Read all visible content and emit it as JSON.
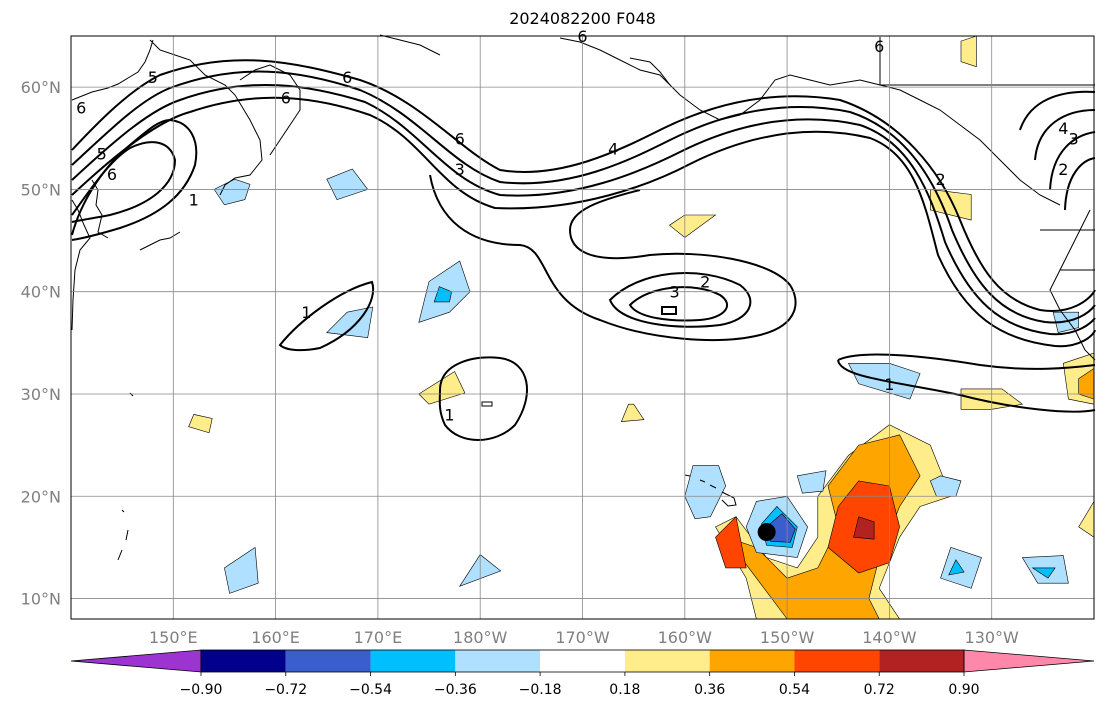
{
  "title": "2024082200 F048",
  "colors": {
    "land_outline": "#000000",
    "grid": "#888888",
    "contour": "#000000"
  },
  "chart_data": {
    "type": "map",
    "lon_range": [
      140,
      240
    ],
    "lat_range": [
      8,
      65
    ],
    "lat_ticks": [
      {
        "value": 10,
        "label": "10°N"
      },
      {
        "value": 20,
        "label": "20°N"
      },
      {
        "value": 30,
        "label": "30°N"
      },
      {
        "value": 40,
        "label": "40°N"
      },
      {
        "value": 50,
        "label": "50°N"
      },
      {
        "value": 60,
        "label": "60°N"
      }
    ],
    "lon_ticks": [
      {
        "value": 150,
        "label": "150°E"
      },
      {
        "value": 160,
        "label": "160°E"
      },
      {
        "value": 170,
        "label": "170°E"
      },
      {
        "value": 180,
        "label": "180°W"
      },
      {
        "value": 190,
        "label": "170°W"
      },
      {
        "value": 200,
        "label": "160°W"
      },
      {
        "value": 210,
        "label": "150°W"
      },
      {
        "value": 220,
        "label": "140°W"
      },
      {
        "value": 230,
        "label": "130°W"
      }
    ],
    "colorbar": {
      "levels": [
        -0.9,
        -0.72,
        -0.54,
        -0.36,
        -0.18,
        0.18,
        0.36,
        0.54,
        0.72,
        0.9
      ],
      "labels": [
        "−0.90",
        "−0.72",
        "−0.54",
        "−0.36",
        "−0.18",
        "0.18",
        "0.36",
        "0.54",
        "0.72",
        "0.90"
      ],
      "colors": [
        "#9b34d0",
        "#00008b",
        "#3a5fcd",
        "#00bfff",
        "#b0e0ff",
        "#ffffff",
        "#ffec8b",
        "#ffa500",
        "#ff4500",
        "#b22222",
        "#ff88aa"
      ]
    },
    "storm_marker": {
      "lon": 208,
      "lat": 16.5
    },
    "contour_labels": [
      {
        "text": "6",
        "lon": 144,
        "lat": 51.5
      },
      {
        "text": "5",
        "lon": 143,
        "lat": 53.5
      },
      {
        "text": "1",
        "lon": 152,
        "lat": 49
      },
      {
        "text": "5",
        "lon": 148,
        "lat": 61
      },
      {
        "text": "6",
        "lon": 161,
        "lat": 59
      },
      {
        "text": "6",
        "lon": 167,
        "lat": 61
      },
      {
        "text": "6",
        "lon": 178,
        "lat": 55
      },
      {
        "text": "3",
        "lon": 178,
        "lat": 52
      },
      {
        "text": "4",
        "lon": 193,
        "lat": 54
      },
      {
        "text": "3",
        "lon": 199,
        "lat": 40
      },
      {
        "text": "2",
        "lon": 202,
        "lat": 41
      },
      {
        "text": "1",
        "lon": 163,
        "lat": 38
      },
      {
        "text": "1",
        "lon": 177,
        "lat": 28
      },
      {
        "text": "2",
        "lon": 225,
        "lat": 51
      },
      {
        "text": "1",
        "lon": 220,
        "lat": 31
      },
      {
        "text": "6",
        "lon": 219,
        "lat": 64
      },
      {
        "text": "4",
        "lon": 237,
        "lat": 56
      },
      {
        "text": "3",
        "lon": 238,
        "lat": 55
      },
      {
        "text": "2",
        "lon": 237,
        "lat": 52
      },
      {
        "text": "6",
        "lon": 190,
        "lat": 65
      },
      {
        "text": "6",
        "lon": 141,
        "lat": 58
      }
    ],
    "shaded_regions": [
      {
        "level": 0.18,
        "pts": [
          [
            207,
            8
          ],
          [
            206,
            12
          ],
          [
            203,
            17
          ],
          [
            205,
            18
          ],
          [
            208,
            14
          ],
          [
            211,
            13
          ],
          [
            213,
            16
          ],
          [
            213,
            20
          ],
          [
            216,
            24
          ],
          [
            220,
            27
          ],
          [
            224,
            25
          ],
          [
            226,
            20
          ],
          [
            223,
            19
          ],
          [
            221,
            16
          ],
          [
            219,
            11
          ],
          [
            221,
            8
          ]
        ]
      },
      {
        "level": 0.36,
        "pts": [
          [
            210,
            8
          ],
          [
            207,
            12
          ],
          [
            204,
            16
          ],
          [
            207,
            15
          ],
          [
            210,
            12
          ],
          [
            213,
            13
          ],
          [
            215,
            17
          ],
          [
            214,
            21
          ],
          [
            217,
            25
          ],
          [
            221,
            26
          ],
          [
            223,
            22
          ],
          [
            221,
            19
          ],
          [
            219,
            14
          ],
          [
            218,
            10
          ],
          [
            219,
            8
          ]
        ]
      },
      {
        "level": 0.54,
        "pts": [
          [
            203,
            16
          ],
          [
            205,
            18
          ],
          [
            206,
            13
          ],
          [
            204,
            13
          ]
        ]
      },
      {
        "level": 0.54,
        "pts": [
          [
            214,
            15
          ],
          [
            215,
            19
          ],
          [
            217,
            21.5
          ],
          [
            220,
            21
          ],
          [
            221,
            17
          ],
          [
            220,
            13.5
          ],
          [
            217,
            12.5
          ]
        ]
      },
      {
        "level": 0.72,
        "pts": [
          [
            216.5,
            16
          ],
          [
            217,
            18
          ],
          [
            218.5,
            17.5
          ],
          [
            218.5,
            15.8
          ]
        ]
      },
      {
        "level": -0.18,
        "pts": [
          [
            207,
            14.5
          ],
          [
            206,
            17
          ],
          [
            207,
            19.5
          ],
          [
            210,
            20
          ],
          [
            212,
            17
          ],
          [
            211,
            14
          ]
        ]
      },
      {
        "level": -0.36,
        "pts": [
          [
            208,
            15.2
          ],
          [
            207.5,
            17.3
          ],
          [
            209,
            19
          ],
          [
            211,
            17
          ],
          [
            210.5,
            15
          ]
        ]
      },
      {
        "level": -0.54,
        "pts": [
          [
            208.4,
            15.6
          ],
          [
            208.2,
            17.2
          ],
          [
            209.5,
            18.3
          ],
          [
            210.8,
            16.8
          ],
          [
            210.3,
            15.5
          ]
        ]
      },
      {
        "level": -0.18,
        "pts": [
          [
            200,
            20
          ],
          [
            200.8,
            23
          ],
          [
            203.3,
            23
          ],
          [
            204,
            21
          ],
          [
            202.5,
            18
          ],
          [
            201,
            17.8
          ]
        ]
      },
      {
        "level": -0.18,
        "pts": [
          [
            211,
            22
          ],
          [
            213.8,
            22.5
          ],
          [
            213.5,
            20.5
          ],
          [
            211.5,
            20.3
          ]
        ]
      },
      {
        "level": -0.18,
        "pts": [
          [
            224,
            21.5
          ],
          [
            225,
            22
          ],
          [
            227,
            21.5
          ],
          [
            226.5,
            20
          ],
          [
            224.6,
            20
          ]
        ]
      },
      {
        "level": -0.18,
        "pts": [
          [
            225,
            12
          ],
          [
            226,
            15
          ],
          [
            229,
            14
          ],
          [
            228,
            11
          ]
        ]
      },
      {
        "level": -0.36,
        "pts": [
          [
            225.8,
            12.3
          ],
          [
            226.5,
            13.8
          ],
          [
            227.3,
            12.6
          ]
        ]
      },
      {
        "level": -0.18,
        "pts": [
          [
            233,
            14
          ],
          [
            237,
            14.2
          ],
          [
            237.5,
            11.5
          ],
          [
            234.5,
            11.5
          ]
        ]
      },
      {
        "level": -0.36,
        "pts": [
          [
            234,
            13
          ],
          [
            236.2,
            13
          ],
          [
            235.5,
            12
          ]
        ]
      },
      {
        "level": -0.18,
        "pts": [
          [
            165,
            36
          ],
          [
            167,
            38
          ],
          [
            169.5,
            38.5
          ],
          [
            169,
            35.5
          ]
        ]
      },
      {
        "level": -0.18,
        "pts": [
          [
            180,
            14.3
          ],
          [
            178,
            11.2
          ],
          [
            182,
            12.7
          ]
        ]
      },
      {
        "level": -0.18,
        "pts": [
          [
            155,
            13
          ],
          [
            158,
            15
          ],
          [
            158.3,
            11.5
          ],
          [
            155.5,
            10.5
          ]
        ]
      },
      {
        "level": -0.18,
        "pts": [
          [
            174,
            37
          ],
          [
            175,
            41
          ],
          [
            178,
            43
          ],
          [
            179,
            40
          ],
          [
            177,
            38
          ]
        ]
      },
      {
        "level": -0.36,
        "pts": [
          [
            175.5,
            39
          ],
          [
            176,
            40.5
          ],
          [
            177.2,
            40
          ],
          [
            177,
            39
          ]
        ]
      },
      {
        "level": -0.18,
        "pts": [
          [
            165,
            51
          ],
          [
            167.5,
            52
          ],
          [
            169,
            50
          ],
          [
            166,
            49
          ]
        ]
      },
      {
        "level": -0.18,
        "pts": [
          [
            216,
            33
          ],
          [
            220,
            33
          ],
          [
            223,
            32
          ],
          [
            222,
            29.5
          ],
          [
            217,
            31
          ]
        ]
      },
      {
        "level": -0.18,
        "pts": [
          [
            236,
            38
          ],
          [
            238.5,
            38
          ],
          [
            238.5,
            36.5
          ],
          [
            236.5,
            36
          ]
        ]
      },
      {
        "level": -0.18,
        "pts": [
          [
            156,
            51
          ],
          [
            154,
            50
          ],
          [
            155,
            48.5
          ],
          [
            157,
            49
          ],
          [
            157.5,
            50.5
          ]
        ]
      },
      {
        "level": 0.18,
        "pts": [
          [
            177.5,
            32.2
          ],
          [
            178.5,
            30.1
          ],
          [
            175,
            29
          ],
          [
            174,
            30
          ]
        ]
      },
      {
        "level": 0.18,
        "pts": [
          [
            195,
            29
          ],
          [
            196,
            27.5
          ],
          [
            193.8,
            27.3
          ],
          [
            194.5,
            29
          ]
        ]
      },
      {
        "level": 0.18,
        "pts": [
          [
            203,
            47.5
          ],
          [
            200,
            45.3
          ],
          [
            198.5,
            46.5
          ],
          [
            200,
            47.5
          ]
        ]
      },
      {
        "level": 0.18,
        "pts": [
          [
            224,
            50
          ],
          [
            224,
            48
          ],
          [
            228,
            47
          ],
          [
            228,
            49.5
          ]
        ]
      },
      {
        "level": 0.18,
        "pts": [
          [
            227,
            30.5
          ],
          [
            231,
            30.5
          ],
          [
            233,
            29
          ],
          [
            230,
            28.5
          ],
          [
            227,
            28.5
          ]
        ]
      },
      {
        "level": 0.18,
        "pts": [
          [
            237,
            33
          ],
          [
            240,
            34
          ],
          [
            240,
            29
          ],
          [
            237.5,
            29.5
          ]
        ]
      },
      {
        "level": 0.36,
        "pts": [
          [
            238.5,
            31.5
          ],
          [
            240,
            32.5
          ],
          [
            240,
            29.5
          ],
          [
            238.5,
            30
          ]
        ]
      },
      {
        "level": 0.18,
        "pts": [
          [
            240,
            16
          ],
          [
            238.5,
            17
          ],
          [
            240,
            19.5
          ]
        ]
      },
      {
        "level": 0.18,
        "pts": [
          [
            152,
            28
          ],
          [
            151.5,
            26.8
          ],
          [
            153.5,
            26.2
          ],
          [
            153.8,
            27.6
          ]
        ]
      },
      {
        "level": 0.18,
        "pts": [
          [
            227,
            64.5
          ],
          [
            228.5,
            65
          ],
          [
            228.5,
            62
          ],
          [
            227,
            62.5
          ]
        ]
      }
    ]
  }
}
